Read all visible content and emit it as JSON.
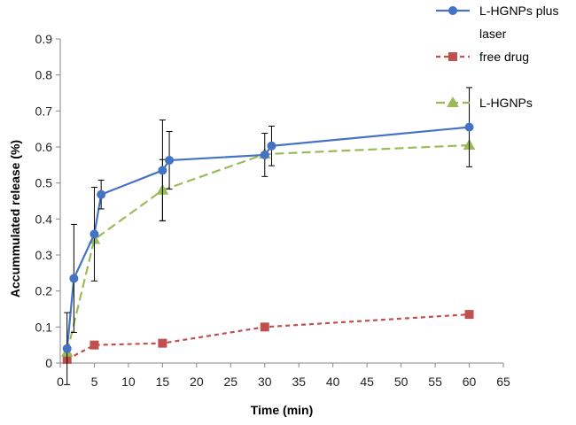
{
  "chart_data": {
    "type": "line",
    "title": "",
    "xlabel": "Time (min)",
    "ylabel": "Accummulated release (%)",
    "xlim": [
      0,
      65
    ],
    "ylim": [
      0,
      0.9
    ],
    "xticks": [
      0,
      5,
      10,
      15,
      20,
      25,
      30,
      35,
      40,
      45,
      50,
      55,
      60,
      65
    ],
    "yticks": [
      0,
      0.1,
      0.2,
      0.3,
      0.4,
      0.5,
      0.6,
      0.7,
      0.8,
      0.9
    ],
    "grid": false,
    "legend_position": "top-right",
    "series": [
      {
        "name": "L-HGNPs plus laser",
        "legend_lines": [
          "L-HGNPs plus",
          "laser"
        ],
        "color": "#4472C4",
        "line_style": "solid",
        "marker": "circle",
        "x": [
          1,
          2,
          5,
          6,
          15,
          16,
          30,
          31,
          60
        ],
        "y": [
          0.04,
          0.235,
          0.358,
          0.468,
          0.535,
          0.563,
          0.578,
          0.603,
          0.655
        ],
        "error": [
          0.1,
          0.15,
          0.13,
          0.04,
          0.14,
          0.08,
          0.06,
          0.055,
          0.11
        ]
      },
      {
        "name": "free drug",
        "legend_lines": [
          "free drug"
        ],
        "color": "#C0504D",
        "line_style": "dashed-short",
        "marker": "square",
        "x": [
          1,
          5,
          15,
          30,
          60
        ],
        "y": [
          0.01,
          0.05,
          0.055,
          0.1,
          0.135
        ],
        "error": [
          0,
          0,
          0,
          0,
          0
        ]
      },
      {
        "name": "L-HGNPs",
        "legend_lines": [
          "L-HGNPs"
        ],
        "color": "#9BBB59",
        "line_style": "dashed-long",
        "marker": "triangle",
        "x": [
          1,
          5,
          15,
          30,
          60
        ],
        "y": [
          0.03,
          0.343,
          0.48,
          0.58,
          0.605
        ],
        "error": [
          0,
          0,
          0.085,
          0,
          0
        ]
      }
    ]
  }
}
